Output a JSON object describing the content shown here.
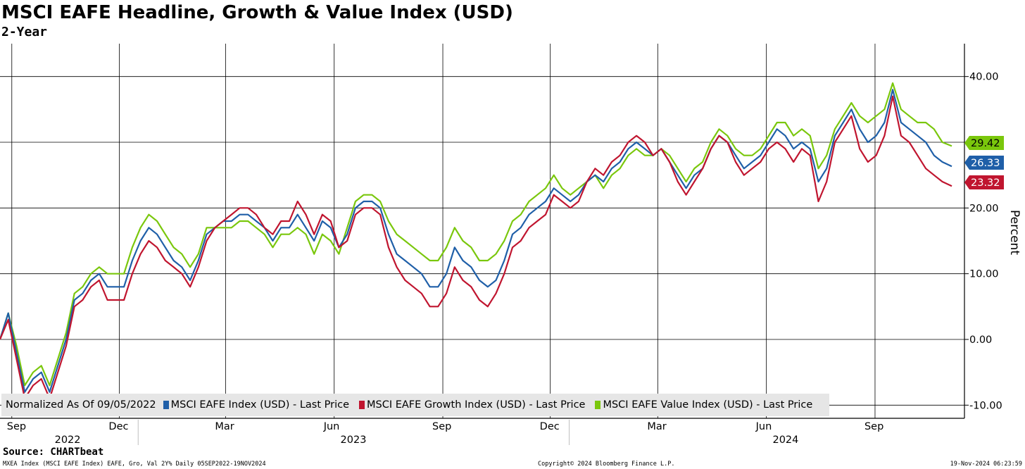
{
  "chart_data": {
    "type": "line",
    "title": "MSCI EAFE Headline, Growth & Value Index (USD)",
    "subtitle": "2-Year",
    "ylabel": "Percent",
    "ylim": [
      -12,
      45
    ],
    "yticks": [
      -10,
      0,
      10,
      20,
      30,
      40
    ],
    "ytick_labels": [
      "-10.00",
      "0.00",
      "10.00",
      "20.00",
      "30.00",
      "40.00"
    ],
    "x_range": [
      "2022-09-05",
      "2024-11-19"
    ],
    "month_ticks": [
      {
        "label": "Sep",
        "date": "2022-09-15"
      },
      {
        "label": "Dec",
        "date": "2022-12-15"
      },
      {
        "label": "Mar",
        "date": "2023-03-15"
      },
      {
        "label": "Jun",
        "date": "2023-06-15"
      },
      {
        "label": "Sep",
        "date": "2023-09-15"
      },
      {
        "label": "Dec",
        "date": "2023-12-15"
      },
      {
        "label": "Mar",
        "date": "2024-03-15"
      },
      {
        "label": "Jun",
        "date": "2024-06-15"
      },
      {
        "label": "Sep",
        "date": "2024-09-15"
      }
    ],
    "year_labels": [
      {
        "label": "2022",
        "date": "2022-11-01"
      },
      {
        "label": "2023",
        "date": "2023-07-01"
      },
      {
        "label": "2024",
        "date": "2024-07-01"
      }
    ],
    "grid": true,
    "dates": [
      "2022-09-05",
      "2022-09-12",
      "2022-09-19",
      "2022-09-26",
      "2022-10-03",
      "2022-10-10",
      "2022-10-17",
      "2022-10-24",
      "2022-10-31",
      "2022-11-07",
      "2022-11-14",
      "2022-11-21",
      "2022-11-28",
      "2022-12-05",
      "2022-12-12",
      "2022-12-19",
      "2022-12-26",
      "2023-01-02",
      "2023-01-09",
      "2023-01-16",
      "2023-01-23",
      "2023-01-30",
      "2023-02-06",
      "2023-02-13",
      "2023-02-20",
      "2023-02-27",
      "2023-03-06",
      "2023-03-13",
      "2023-03-20",
      "2023-03-27",
      "2023-04-03",
      "2023-04-10",
      "2023-04-17",
      "2023-04-24",
      "2023-05-01",
      "2023-05-08",
      "2023-05-15",
      "2023-05-22",
      "2023-05-29",
      "2023-06-05",
      "2023-06-12",
      "2023-06-19",
      "2023-06-26",
      "2023-07-03",
      "2023-07-10",
      "2023-07-17",
      "2023-07-24",
      "2023-07-31",
      "2023-08-07",
      "2023-08-14",
      "2023-08-21",
      "2023-08-28",
      "2023-09-04",
      "2023-09-11",
      "2023-09-18",
      "2023-09-25",
      "2023-10-02",
      "2023-10-09",
      "2023-10-16",
      "2023-10-23",
      "2023-10-30",
      "2023-11-06",
      "2023-11-13",
      "2023-11-20",
      "2023-11-27",
      "2023-12-04",
      "2023-12-11",
      "2023-12-18",
      "2023-12-25",
      "2024-01-01",
      "2024-01-08",
      "2024-01-15",
      "2024-01-22",
      "2024-01-29",
      "2024-02-05",
      "2024-02-12",
      "2024-02-19",
      "2024-02-26",
      "2024-03-04",
      "2024-03-11",
      "2024-03-18",
      "2024-03-25",
      "2024-04-01",
      "2024-04-08",
      "2024-04-15",
      "2024-04-22",
      "2024-04-29",
      "2024-05-06",
      "2024-05-13",
      "2024-05-20",
      "2024-05-27",
      "2024-06-03",
      "2024-06-10",
      "2024-06-17",
      "2024-06-24",
      "2024-07-01",
      "2024-07-08",
      "2024-07-15",
      "2024-07-22",
      "2024-07-29",
      "2024-08-05",
      "2024-08-12",
      "2024-08-19",
      "2024-08-26",
      "2024-09-02",
      "2024-09-09",
      "2024-09-16",
      "2024-09-23",
      "2024-09-30",
      "2024-10-07",
      "2024-10-14",
      "2024-10-21",
      "2024-10-28",
      "2024-11-04",
      "2024-11-11",
      "2024-11-19"
    ],
    "series": [
      {
        "name": "MSCI EAFE Index (USD) - Last Price",
        "color": "#1f5fa8",
        "last_label": "26.33",
        "values": [
          0,
          4,
          -2,
          -8,
          -6,
          -5,
          -8,
          -4,
          0,
          6,
          7,
          9,
          10,
          8,
          8,
          8,
          12,
          15,
          17,
          16,
          14,
          12,
          11,
          9,
          12,
          16,
          17,
          18,
          18,
          19,
          19,
          18,
          17,
          15,
          17,
          17,
          19,
          17,
          15,
          18,
          17,
          14,
          16,
          20,
          21,
          21,
          20,
          16,
          13,
          12,
          11,
          10,
          8,
          8,
          10,
          14,
          12,
          11,
          9,
          8,
          9,
          12,
          16,
          17,
          19,
          20,
          21,
          23,
          22,
          21,
          22,
          24,
          25,
          24,
          26,
          27,
          29,
          30,
          29,
          28,
          29,
          27,
          25,
          23,
          25,
          26,
          29,
          31,
          30,
          28,
          26,
          27,
          28,
          30,
          32,
          31,
          29,
          30,
          29,
          24,
          26,
          31,
          33,
          35,
          32,
          30,
          31,
          33,
          38,
          33,
          32,
          31,
          30,
          28,
          27,
          26.33
        ]
      },
      {
        "name": "MSCI EAFE Growth Index (USD) - Last Price",
        "color": "#c0152f",
        "last_label": "23.32",
        "values": [
          0,
          3,
          -3,
          -9,
          -7,
          -6,
          -9,
          -5,
          -1,
          5,
          6,
          8,
          9,
          6,
          6,
          6,
          10,
          13,
          15,
          14,
          12,
          11,
          10,
          8,
          11,
          15,
          17,
          18,
          19,
          20,
          20,
          19,
          17,
          16,
          18,
          18,
          21,
          19,
          16,
          19,
          18,
          14,
          15,
          19,
          20,
          20,
          19,
          14,
          11,
          9,
          8,
          7,
          5,
          5,
          7,
          11,
          9,
          8,
          6,
          5,
          7,
          10,
          14,
          15,
          17,
          18,
          19,
          22,
          21,
          20,
          21,
          24,
          26,
          25,
          27,
          28,
          30,
          31,
          30,
          28,
          29,
          27,
          24,
          22,
          24,
          26,
          29,
          31,
          30,
          27,
          25,
          26,
          27,
          29,
          30,
          29,
          27,
          29,
          28,
          21,
          24,
          30,
          32,
          34,
          29,
          27,
          28,
          31,
          37,
          31,
          30,
          28,
          26,
          25,
          24,
          23.32
        ]
      },
      {
        "name": "MSCI EAFE Value Index (USD) - Last Price",
        "color": "#7ac70c",
        "last_label": "29.42",
        "values": [
          0,
          4,
          -1,
          -7,
          -5,
          -4,
          -7,
          -3,
          1,
          7,
          8,
          10,
          11,
          10,
          10,
          10,
          14,
          17,
          19,
          18,
          16,
          14,
          13,
          11,
          13,
          17,
          17,
          17,
          17,
          18,
          18,
          17,
          16,
          14,
          16,
          16,
          17,
          16,
          13,
          16,
          15,
          13,
          17,
          21,
          22,
          22,
          21,
          18,
          16,
          15,
          14,
          13,
          12,
          12,
          14,
          17,
          15,
          14,
          12,
          12,
          13,
          15,
          18,
          19,
          21,
          22,
          23,
          25,
          23,
          22,
          23,
          24,
          25,
          23,
          25,
          26,
          28,
          29,
          28,
          28,
          29,
          28,
          26,
          24,
          26,
          27,
          30,
          32,
          31,
          29,
          28,
          28,
          29,
          31,
          33,
          33,
          31,
          32,
          31,
          26,
          28,
          32,
          34,
          36,
          34,
          33,
          34,
          35,
          39,
          35,
          34,
          33,
          33,
          32,
          30,
          29.42
        ]
      }
    ]
  },
  "legend": {
    "note": "Normalized As Of 09/05/2022",
    "items": [
      {
        "label": "MSCI EAFE Index (USD) - Last Price",
        "color": "#1f5fa8"
      },
      {
        "label": "MSCI EAFE Growth Index (USD) - Last Price",
        "color": "#c0152f"
      },
      {
        "label": "MSCI EAFE Value Index (USD) - Last Price",
        "color": "#7ac70c"
      }
    ]
  },
  "footer": {
    "source": "Source: CHARTbeat",
    "left": "MXEA Index (MSCI EAFE Index) EAFE, Gro, Val 2Y%  Daily 05SEP2022-19NOV2024",
    "middle": "Copyright© 2024 Bloomberg Finance L.P.",
    "right": "19-Nov-2024 06:23:59"
  },
  "colors": {
    "grid": "#000000",
    "axis": "#000000"
  }
}
